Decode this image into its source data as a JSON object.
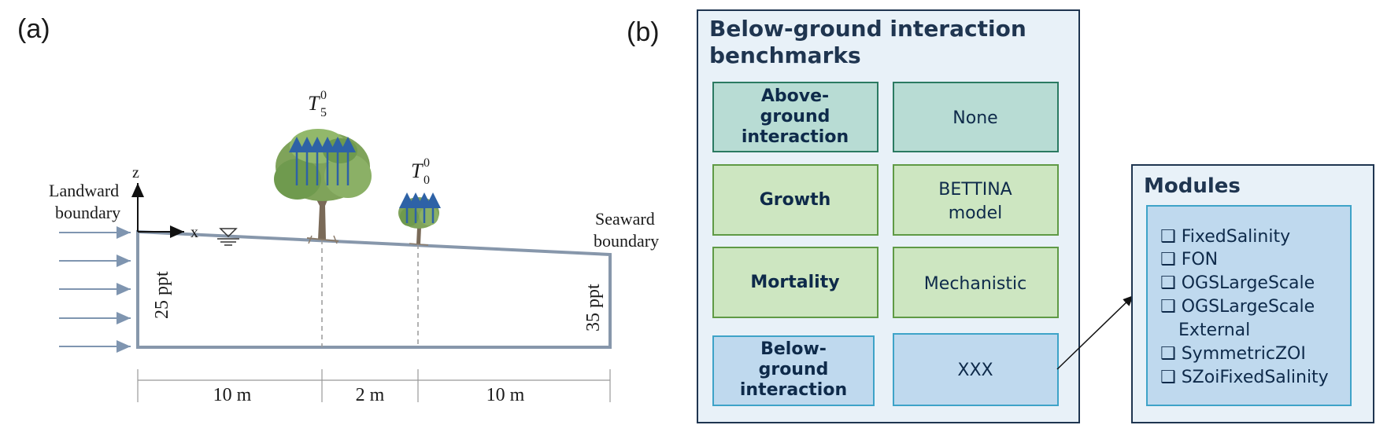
{
  "panel_a": {
    "label": "(a)",
    "landward_line1": "Landward",
    "landward_line2": "boundary",
    "seaward_line1": "Seaward",
    "seaward_line2": "boundary",
    "axis_z": "z",
    "axis_x": "x",
    "salinity_left": "25 ppt",
    "salinity_right": "35 ppt",
    "tree_large_label": "T",
    "tree_large_sub": "5",
    "tree_large_sup": "0",
    "tree_small_label": "T",
    "tree_small_sub": "0",
    "tree_small_sup": "0",
    "dim_1": "10 m",
    "dim_2": "2 m",
    "dim_3": "10 m"
  },
  "panel_b": {
    "label": "(b)",
    "title_line1": "Below-ground interaction",
    "title_line2": "benchmarks",
    "rows": [
      {
        "key_lines": [
          "Above-",
          "ground",
          "interaction"
        ],
        "value_lines": [
          "None"
        ]
      },
      {
        "key_lines": [
          "Growth"
        ],
        "value_lines": [
          "BETTINA",
          "model"
        ]
      },
      {
        "key_lines": [
          "Mortality"
        ],
        "value_lines": [
          "Mechanistic"
        ]
      },
      {
        "key_lines": [
          "Below-",
          "ground",
          "interaction"
        ],
        "value_lines": [
          "XXX"
        ]
      }
    ]
  },
  "modules": {
    "title": "Modules",
    "items": [
      "❑ FixedSalinity",
      "❑ FON",
      "❑ OGSLargeScale",
      "❑ OGSLargeScale",
      "External",
      "❑ SymmetricZOI",
      "❑ SZoiFixedSalinity"
    ]
  },
  "colors": {
    "domain_outline": "#8797ab",
    "arrow_light": "#7f95b0",
    "tree_arrow": "#2e62a6",
    "foliage": "#7fa35a",
    "trunk": "#7a6a58",
    "outer_box_fill": "#e8f1f8",
    "outer_box_stroke": "#1f3550",
    "teal_fill": "#b8dcd4",
    "teal_stroke": "#2b7a62",
    "green_fill": "#cde6c1",
    "green_stroke": "#5f9a45",
    "blue_fill": "#bfd9ee",
    "blue_stroke": "#3ea3c8"
  }
}
